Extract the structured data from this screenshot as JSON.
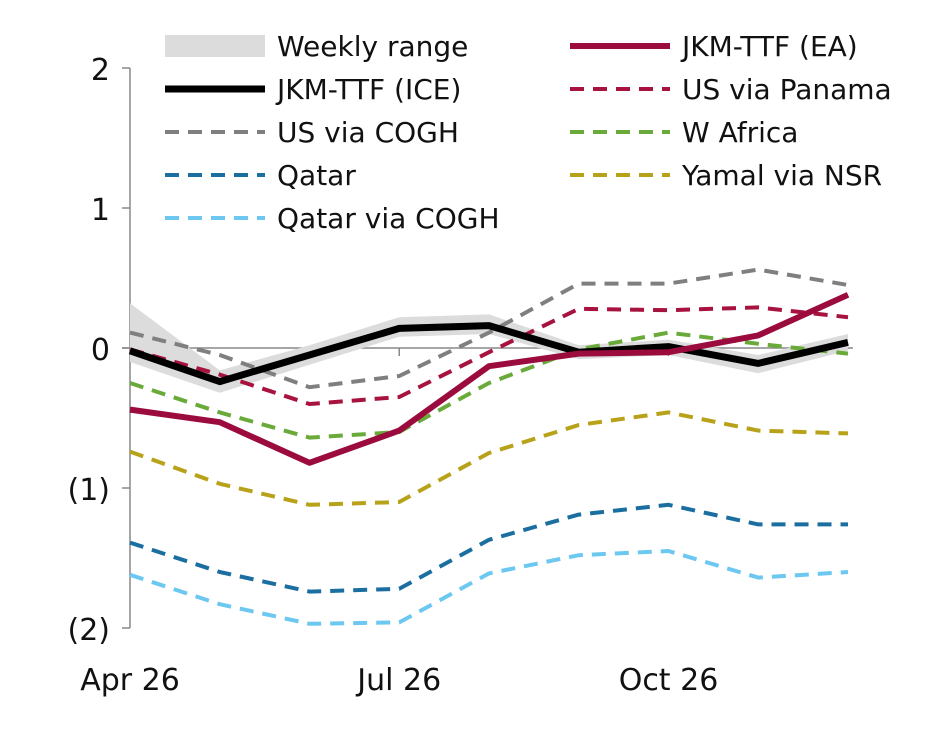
{
  "chart_data": {
    "type": "line",
    "title": "",
    "xlabel": "",
    "ylabel": "",
    "ylim": [
      -2,
      2
    ],
    "yticks": [
      2,
      1,
      0,
      -1,
      -2
    ],
    "ytick_labels": [
      "2",
      "1",
      "0",
      "(1)",
      "(2)"
    ],
    "x": [
      "Apr 26",
      "May 26",
      "Jun 26",
      "Jul 26",
      "Aug 26",
      "Sep 26",
      "Oct 26",
      "Nov 26",
      "Dec 26"
    ],
    "xtick_labels": [
      {
        "x": "Apr 26",
        "label": "Apr 26"
      },
      {
        "x": "Jul 26",
        "label": "Jul 26"
      },
      {
        "x": "Oct 26",
        "label": "Oct 26"
      }
    ],
    "grid": false,
    "legend_position": "top",
    "band": {
      "name": "Weekly range",
      "color": "#dcdcdc",
      "low": [
        -0.1,
        -0.32,
        -0.12,
        0.08,
        0.1,
        -0.08,
        -0.05,
        -0.18,
        -0.02
      ],
      "high": [
        0.32,
        -0.16,
        0.02,
        0.22,
        0.24,
        0.02,
        0.06,
        -0.05,
        0.1
      ]
    },
    "series": [
      {
        "name": "JKM-TTF (ICE)",
        "color": "#000000",
        "style": "solid",
        "width": 7,
        "values": [
          -0.02,
          -0.24,
          -0.05,
          0.14,
          0.16,
          -0.03,
          0.01,
          -0.11,
          0.04
        ]
      },
      {
        "name": "JKM-TTF (EA)",
        "color": "#9b0b3d",
        "style": "solid",
        "width": 6,
        "values": [
          -0.44,
          -0.53,
          -0.82,
          -0.59,
          -0.13,
          -0.04,
          -0.03,
          0.09,
          0.38
        ]
      },
      {
        "name": "US via Panama",
        "color": "#a8123f",
        "style": "dashed",
        "width": 4,
        "values": [
          -0.01,
          -0.19,
          -0.4,
          -0.35,
          -0.03,
          0.28,
          0.27,
          0.29,
          0.22
        ]
      },
      {
        "name": "US via COGH",
        "color": "#7f7f7f",
        "style": "dashed",
        "width": 4,
        "values": [
          0.11,
          -0.05,
          -0.28,
          -0.2,
          0.11,
          0.46,
          0.46,
          0.56,
          0.45
        ]
      },
      {
        "name": "W Africa",
        "color": "#6aaa3a",
        "style": "dashed",
        "width": 4,
        "values": [
          -0.25,
          -0.46,
          -0.64,
          -0.6,
          -0.25,
          -0.01,
          0.11,
          0.03,
          -0.04
        ]
      },
      {
        "name": "Qatar",
        "color": "#1a6fa0",
        "style": "dashed",
        "width": 4,
        "values": [
          -1.39,
          -1.6,
          -1.74,
          -1.72,
          -1.37,
          -1.19,
          -1.12,
          -1.26,
          -1.26
        ]
      },
      {
        "name": "Yamal via NSR",
        "color": "#b8a21a",
        "style": "dashed",
        "width": 4,
        "values": [
          -0.74,
          -0.97,
          -1.12,
          -1.1,
          -0.75,
          -0.55,
          -0.46,
          -0.59,
          -0.61
        ]
      },
      {
        "name": "Qatar via COGH",
        "color": "#6cc8f0",
        "style": "dashed",
        "width": 4,
        "values": [
          -1.62,
          -1.83,
          -1.97,
          -1.96,
          -1.61,
          -1.48,
          -1.45,
          -1.64,
          -1.6
        ]
      }
    ]
  }
}
